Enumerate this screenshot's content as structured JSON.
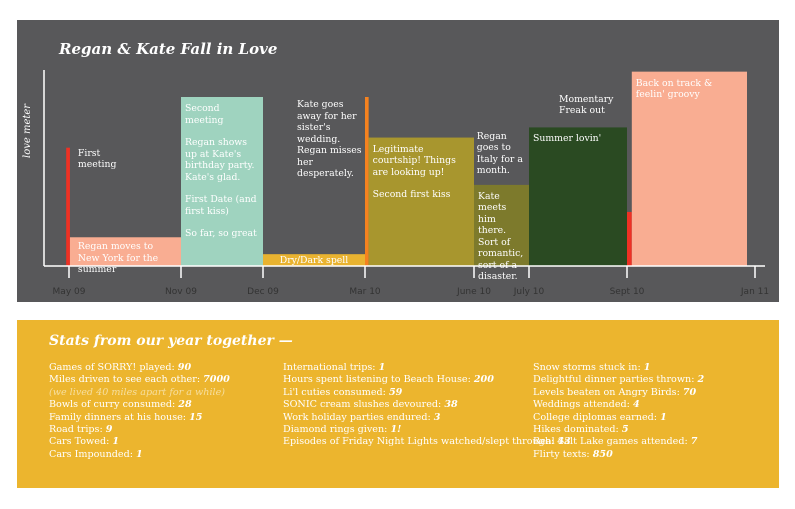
{
  "colors": {
    "panel_bg": "#58585a",
    "stats_bg": "#ecb52e",
    "red": "#ee3124",
    "salmon": "#f9ad92",
    "mint": "#9fd3bf",
    "mustard": "#e9b330",
    "orange": "#f5821f",
    "olive": "#a8962e",
    "darkolive": "#7d7a2c",
    "green": "#2a4a22",
    "axis": "#ffffff"
  },
  "chart_data": {
    "type": "timeline",
    "title": "Regan & Kate Fall in Love",
    "ylabel": "love meter",
    "xlabel": "",
    "ylim": [
      0,
      100
    ],
    "x_ticks": [
      {
        "label": "May 09",
        "month": 0
      },
      {
        "label": "Nov 09",
        "month": 6
      },
      {
        "label": "Dec 09",
        "month": 7
      },
      {
        "label": "Mar 10",
        "month": 10
      },
      {
        "label": "June 10",
        "month": 13
      },
      {
        "label": "July 10",
        "month": 14
      },
      {
        "label": "Sept 10",
        "month": 16
      },
      {
        "label": "Jan 11",
        "month": 20
      }
    ],
    "segments": [
      {
        "start": -0.15,
        "end": 0.05,
        "value": 70,
        "color": "red",
        "label": "First meeting",
        "label_pos": "right-top"
      },
      {
        "start": 0.05,
        "end": 6.0,
        "value": 17,
        "color": "salmon",
        "label": "Regan moves to New York for the summer",
        "label_pos": "inside-bottom"
      },
      {
        "start": 6.0,
        "end": 7.0,
        "value": 100,
        "color": "mint",
        "label": "Second meeting\n\nRegan shows up at Kate's birthday party. Kate's glad.\n\nFirst Date (and first kiss)\n\nSo far, so great",
        "label_pos": "inside-top"
      },
      {
        "start": 7.0,
        "end": 10.0,
        "value": 7,
        "color": "mustard",
        "label": "Dry/Dark spell",
        "label_pos": "inside-bottom"
      },
      {
        "start": 10.0,
        "end": 10.1,
        "value": 100,
        "color": "orange",
        "label": "Kate goes away for her sister's wedding. Regan misses her desperately.",
        "label_pos": "left-top"
      },
      {
        "start": 10.1,
        "end": 13.0,
        "value": 76,
        "color": "olive",
        "label": "Legitimate courtship! Things are looking up!\n\nSecond first kiss",
        "label_pos": "inside-top"
      },
      {
        "start": 13.0,
        "end": 14.0,
        "value": 48,
        "color": "darkolive",
        "label": "Kate meets him there. Sort of romantic, sort of a disaster.",
        "label_pos": "inside-top"
      },
      {
        "start": 13.05,
        "end": 13.95,
        "value": 48,
        "color": "none",
        "label": "Regan goes to Italy for a month.",
        "label_pos": "above"
      },
      {
        "start": 14.0,
        "end": 16.0,
        "value": 82,
        "color": "green",
        "label": "Summer lovin'",
        "label_pos": "inside-top"
      },
      {
        "start": 16.0,
        "end": 16.15,
        "value": 32,
        "color": "red",
        "label": "Momentary Freak out",
        "label_pos": "left-top"
      },
      {
        "start": 16.15,
        "end": 19.75,
        "value": 115,
        "color": "salmon",
        "label": "Back on track & feelin' groovy",
        "label_pos": "inside-top"
      }
    ]
  },
  "stats": {
    "title": "Stats from our year together —",
    "columns": [
      [
        {
          "label": "Games of SORRY! played:",
          "value": "90"
        },
        {
          "label": "Miles driven to see each other:",
          "value": "7000",
          "note": "(we lived 40 miles apart for a while)"
        },
        {
          "label": "Bowls of curry consumed:",
          "value": "28"
        },
        {
          "label": "Family dinners at his house:",
          "value": "15"
        },
        {
          "label": "Road trips:",
          "value": "9"
        },
        {
          "label": "Cars Towed:",
          "value": "1"
        },
        {
          "label": "Cars Impounded:",
          "value": "1"
        }
      ],
      [
        {
          "label": "International trips:",
          "value": "1"
        },
        {
          "label": "Hours spent listening to Beach House:",
          "value": "200"
        },
        {
          "label": "Li'l cuties consumed:",
          "value": "59"
        },
        {
          "label": "SONIC cream slushes devoured:",
          "value": "38"
        },
        {
          "label": "Work holiday parties endured:",
          "value": "3"
        },
        {
          "label": "Diamond rings given:",
          "value": "1!"
        },
        {
          "label": "Episodes of Friday Night Lights watched/slept through:",
          "value": "43"
        }
      ],
      [
        {
          "label": "Snow storms stuck in:",
          "value": "1"
        },
        {
          "label": "Delightful dinner parties thrown:",
          "value": "2"
        },
        {
          "label": "Levels beaten on Angry Birds:",
          "value": "70"
        },
        {
          "label": "Weddings attended:",
          "value": "4"
        },
        {
          "label": "College diplomas earned:",
          "value": "1"
        },
        {
          "label": "Hikes dominated:",
          "value": "5"
        },
        {
          "label": "Real Salt Lake games attended:",
          "value": "7"
        },
        {
          "label": "Flirty texts:",
          "value": "850"
        }
      ]
    ]
  }
}
